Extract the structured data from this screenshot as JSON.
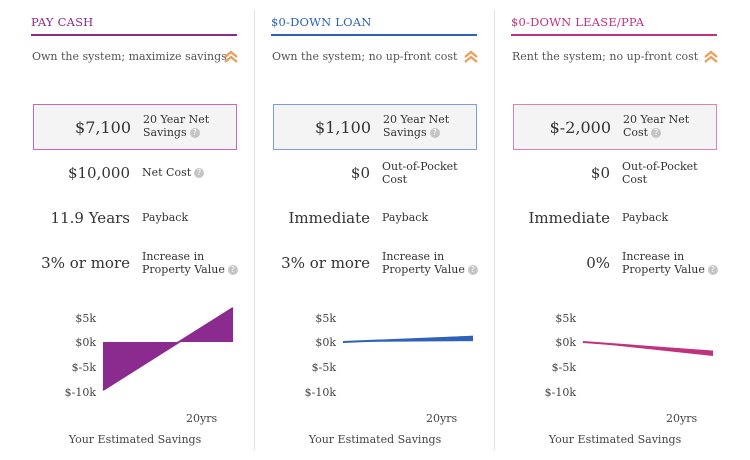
{
  "colors": {
    "cash": "#8b2b8f",
    "loan": "#2f62b6",
    "lease": "#c0317f",
    "chevron": "#e8a060"
  },
  "columns": [
    {
      "title": "PAY CASH",
      "subtitle": "Own the system; maximize savings",
      "net_value": "$7,100",
      "net_label_1": "20 Year Net",
      "net_label_2": "Savings",
      "cost_value": "$10,000",
      "cost_label_1": "Net Cost",
      "cost_label_2": "",
      "payback_value": "11.9 Years",
      "payback_label": "Payback",
      "property_value": "3% or more",
      "property_label_1": "Increase in",
      "property_label_2": "Property Value",
      "ticks": [
        "$5k",
        "$0k",
        "$-5k",
        "$-10k"
      ],
      "end_label": "20yrs",
      "footer": "Your Estimated Savings"
    },
    {
      "title": "$0-DOWN LOAN",
      "subtitle": "Own the system; no up-front cost",
      "net_value": "$1,100",
      "net_label_1": "20 Year Net",
      "net_label_2": "Savings",
      "cost_value": "$0",
      "cost_label_1": "Out-of-Pocket",
      "cost_label_2": "Cost",
      "payback_value": "Immediate",
      "payback_label": "Payback",
      "property_value": "3% or more",
      "property_label_1": "Increase in",
      "property_label_2": "Property Value",
      "ticks": [
        "$5k",
        "$0k",
        "$-5k",
        "$-10k"
      ],
      "end_label": "20yrs",
      "footer": "Your Estimated Savings"
    },
    {
      "title": "$0-DOWN LEASE/PPA",
      "subtitle": "Rent the system; no up-front cost",
      "net_value": "$-2,000",
      "net_label_1": "20 Year Net",
      "net_label_2": "Cost",
      "cost_value": "$0",
      "cost_label_1": "Out-of-Pocket",
      "cost_label_2": "Cost",
      "payback_value": "Immediate",
      "payback_label": "Payback",
      "property_value": "0%",
      "property_label_1": "Increase in",
      "property_label_2": "Property Value",
      "ticks": [
        "$5k",
        "$0k",
        "$-5k",
        "$-10k"
      ],
      "end_label": "20yrs",
      "footer": "Your Estimated Savings"
    }
  ],
  "chart_data": [
    {
      "type": "area",
      "series": [
        {
          "values": [
            -10000,
            7100
          ]
        }
      ],
      "x": [
        0,
        20
      ],
      "ylim": [
        -10000,
        5000
      ]
    },
    {
      "type": "area",
      "series": [
        {
          "values": [
            0,
            1100
          ]
        }
      ],
      "x": [
        0,
        20
      ],
      "ylim": [
        -10000,
        5000
      ]
    },
    {
      "type": "area",
      "series": [
        {
          "values": [
            0,
            -2000
          ]
        }
      ],
      "x": [
        0,
        20
      ],
      "ylim": [
        -10000,
        5000
      ]
    }
  ]
}
